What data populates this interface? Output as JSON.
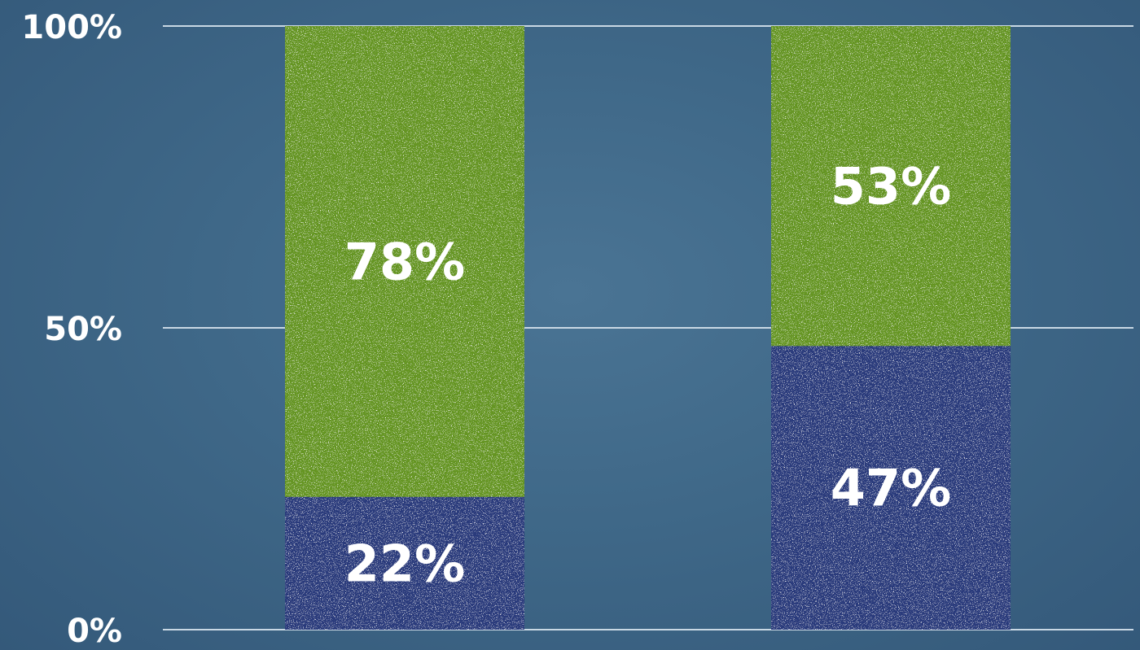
{
  "chart_data": {
    "type": "bar",
    "stacked": true,
    "categories": [
      "",
      ""
    ],
    "ylim": [
      0,
      100
    ],
    "grid": true,
    "y_ticks": [
      {
        "value": 0,
        "label": "0%"
      },
      {
        "value": 50,
        "label": "50%"
      },
      {
        "value": 100,
        "label": "100%"
      }
    ],
    "series": [
      {
        "values": [
          22,
          47
        ],
        "labels": [
          "22%",
          "47%"
        ],
        "color": "#2c3a7c"
      },
      {
        "values": [
          78,
          53
        ],
        "labels": [
          "78%",
          "53%"
        ],
        "color": "#659523"
      }
    ],
    "background_color": "#3f6888"
  }
}
